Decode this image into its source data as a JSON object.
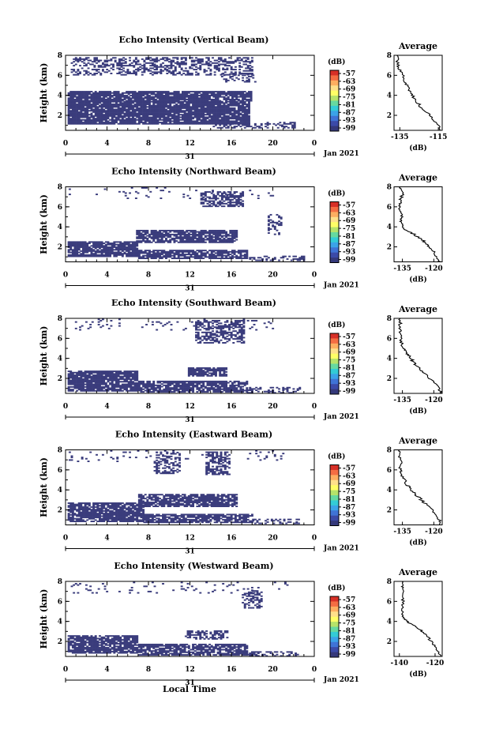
{
  "figure": {
    "x_axis_label": "Local Time",
    "colorbar_unit": "(dB)",
    "colorbar_ticks": [
      "-57",
      "-63",
      "-69",
      "-75",
      "-81",
      "-87",
      "-93",
      "-99"
    ],
    "colorbar_colors": [
      "#d73027",
      "#f46d43",
      "#fdae61",
      "#fee08b",
      "#ffff66",
      "#b6e36a",
      "#66d9a0",
      "#33ccd6",
      "#3ba3e8",
      "#3f73d6",
      "#3b4aa8",
      "#34387a"
    ]
  },
  "chart_data": [
    {
      "type": "heatmap",
      "title": "Echo Intensity (Vertical Beam)",
      "ylabel": "Height (km)",
      "xlabel": "Local Time",
      "x_ticks": [
        "0",
        "4",
        "8",
        "12",
        "16",
        "20",
        "0"
      ],
      "day_label": "31",
      "date_label": "Jan 2021",
      "y_ticks": [
        "2",
        "4",
        "6",
        "8"
      ],
      "xlim": [
        0,
        24
      ],
      "ylim": [
        0.5,
        8
      ],
      "regions": [
        {
          "t0": 0.2,
          "t1": 17.8,
          "h0": 3.4,
          "h1": 4.4,
          "density": 0.88
        },
        {
          "t0": 0.2,
          "t1": 17.6,
          "h0": 1.1,
          "h1": 3.4,
          "density": 0.9
        },
        {
          "t0": 14.0,
          "t1": 22.0,
          "h0": 0.7,
          "h1": 1.3,
          "density": 0.45
        },
        {
          "t0": 0.5,
          "t1": 18.0,
          "h0": 6.0,
          "h1": 7.8,
          "density": 0.45
        },
        {
          "t0": 15.0,
          "t1": 18.2,
          "h0": 5.3,
          "h1": 6.2,
          "density": 0.3
        }
      ],
      "avg": {
        "title": "Average",
        "unit": "(dB)",
        "x_ticks": [
          "-135",
          "-115"
        ],
        "xlim": [
          -138,
          -113
        ],
        "ylim": [
          0.5,
          8
        ],
        "y_ticks": [
          "2",
          "4",
          "6",
          "8"
        ],
        "profile": [
          [
            -113.5,
            0.5
          ],
          [
            -116,
            1.2
          ],
          [
            -119,
            2.0
          ],
          [
            -124,
            2.8
          ],
          [
            -127,
            3.6
          ],
          [
            -130,
            4.4
          ],
          [
            -132,
            5.2
          ],
          [
            -134,
            6.2
          ],
          [
            -136,
            7.0
          ],
          [
            -136.5,
            8.0
          ]
        ]
      }
    },
    {
      "type": "heatmap",
      "title": "Echo Intensity (Northward Beam)",
      "ylabel": "Height (km)",
      "xlabel": "Local Time",
      "x_ticks": [
        "0",
        "4",
        "8",
        "12",
        "16",
        "20",
        "0"
      ],
      "day_label": "31",
      "date_label": "Jan 2021",
      "y_ticks": [
        "2",
        "4",
        "6",
        "8"
      ],
      "xlim": [
        0,
        24
      ],
      "ylim": [
        0.5,
        8
      ],
      "regions": [
        {
          "t0": 0.2,
          "t1": 7.0,
          "h0": 1.0,
          "h1": 2.5,
          "density": 0.85
        },
        {
          "t0": 7.0,
          "t1": 17.5,
          "h0": 0.8,
          "h1": 1.6,
          "density": 0.8
        },
        {
          "t0": 6.8,
          "t1": 16.5,
          "h0": 2.4,
          "h1": 3.6,
          "density": 0.8
        },
        {
          "t0": 17.5,
          "t1": 23.0,
          "h0": 0.6,
          "h1": 1.0,
          "density": 0.4
        },
        {
          "t0": 13.0,
          "t1": 17.0,
          "h0": 6.0,
          "h1": 7.5,
          "density": 0.55
        },
        {
          "t0": 19.5,
          "t1": 20.8,
          "h0": 3.2,
          "h1": 5.2,
          "density": 0.35
        },
        {
          "t0": 0.3,
          "t1": 20.0,
          "h0": 6.8,
          "h1": 7.9,
          "density": 0.05
        }
      ],
      "avg": {
        "title": "Average",
        "unit": "(dB)",
        "x_ticks": [
          "-135",
          "-120"
        ],
        "xlim": [
          -139,
          -116
        ],
        "ylim": [
          0.5,
          8
        ],
        "y_ticks": [
          "2",
          "4",
          "6",
          "8"
        ],
        "profile": [
          [
            -117,
            0.5
          ],
          [
            -119,
            1.2
          ],
          [
            -122,
            2.0
          ],
          [
            -125,
            2.6
          ],
          [
            -129,
            3.2
          ],
          [
            -134,
            3.8
          ],
          [
            -136,
            4.4
          ],
          [
            -135,
            5.0
          ],
          [
            -136,
            5.8
          ],
          [
            -136,
            6.6
          ],
          [
            -135,
            7.2
          ],
          [
            -136,
            8.0
          ]
        ]
      }
    },
    {
      "type": "heatmap",
      "title": "Echo Intensity (Southward Beam)",
      "ylabel": "Height (km)",
      "xlabel": "Local Time",
      "x_ticks": [
        "0",
        "4",
        "8",
        "12",
        "16",
        "20",
        "0"
      ],
      "day_label": "31",
      "date_label": "Jan 2021",
      "y_ticks": [
        "2",
        "4",
        "6",
        "8"
      ],
      "xlim": [
        0,
        24
      ],
      "ylim": [
        0.5,
        8
      ],
      "regions": [
        {
          "t0": 0.2,
          "t1": 7.0,
          "h0": 0.7,
          "h1": 2.7,
          "density": 0.85
        },
        {
          "t0": 7.0,
          "t1": 17.5,
          "h0": 0.6,
          "h1": 1.7,
          "density": 0.8
        },
        {
          "t0": 17.5,
          "t1": 22.5,
          "h0": 0.5,
          "h1": 1.1,
          "density": 0.4
        },
        {
          "t0": 11.8,
          "t1": 15.5,
          "h0": 2.2,
          "h1": 3.0,
          "density": 0.8
        },
        {
          "t0": 12.5,
          "t1": 17.2,
          "h0": 5.5,
          "h1": 7.8,
          "density": 0.55
        },
        {
          "t0": 0.3,
          "t1": 20.0,
          "h0": 6.8,
          "h1": 7.9,
          "density": 0.06
        }
      ],
      "avg": {
        "title": "Average",
        "unit": "(dB)",
        "x_ticks": [
          "-135",
          "-120"
        ],
        "xlim": [
          -139,
          -116
        ],
        "ylim": [
          0.5,
          8
        ],
        "y_ticks": [
          "2",
          "4",
          "6",
          "8"
        ],
        "profile": [
          [
            -116.5,
            0.5
          ],
          [
            -118,
            1.2
          ],
          [
            -122,
            2.0
          ],
          [
            -126,
            2.8
          ],
          [
            -129,
            3.4
          ],
          [
            -131,
            4.0
          ],
          [
            -133,
            4.6
          ],
          [
            -135,
            5.2
          ],
          [
            -136,
            6.0
          ],
          [
            -136,
            7.0
          ],
          [
            -136,
            8.0
          ]
        ]
      }
    },
    {
      "type": "heatmap",
      "title": "Echo Intensity (Eastward Beam)",
      "ylabel": "Height (km)",
      "xlabel": "Local Time",
      "x_ticks": [
        "0",
        "4",
        "8",
        "12",
        "16",
        "20",
        "0"
      ],
      "day_label": "31",
      "date_label": "Jan 2021",
      "y_ticks": [
        "2",
        "4",
        "6",
        "8"
      ],
      "xlim": [
        0,
        24
      ],
      "ylim": [
        0.5,
        8
      ],
      "regions": [
        {
          "t0": 0.2,
          "t1": 7.5,
          "h0": 0.8,
          "h1": 2.7,
          "density": 0.85
        },
        {
          "t0": 7.5,
          "t1": 18.0,
          "h0": 0.7,
          "h1": 1.6,
          "density": 0.75
        },
        {
          "t0": 7.0,
          "t1": 16.5,
          "h0": 2.3,
          "h1": 3.5,
          "density": 0.8
        },
        {
          "t0": 18.0,
          "t1": 22.5,
          "h0": 0.6,
          "h1": 1.0,
          "density": 0.35
        },
        {
          "t0": 8.5,
          "t1": 11.0,
          "h0": 5.6,
          "h1": 7.8,
          "density": 0.45
        },
        {
          "t0": 13.5,
          "t1": 15.8,
          "h0": 5.5,
          "h1": 7.8,
          "density": 0.55
        },
        {
          "t0": 0.3,
          "t1": 21.0,
          "h0": 6.8,
          "h1": 7.9,
          "density": 0.06
        }
      ],
      "avg": {
        "title": "Average",
        "unit": "(dB)",
        "x_ticks": [
          "-135",
          "-120"
        ],
        "xlim": [
          -139,
          -116
        ],
        "ylim": [
          0.5,
          8
        ],
        "y_ticks": [
          "2",
          "4",
          "6",
          "8"
        ],
        "profile": [
          [
            -116.5,
            0.5
          ],
          [
            -118,
            1.2
          ],
          [
            -121,
            2.0
          ],
          [
            -125,
            2.8
          ],
          [
            -128,
            3.4
          ],
          [
            -131,
            4.0
          ],
          [
            -133,
            4.6
          ],
          [
            -135,
            5.4
          ],
          [
            -136,
            6.2
          ],
          [
            -136,
            7.2
          ],
          [
            -136.5,
            8.0
          ]
        ]
      }
    },
    {
      "type": "heatmap",
      "title": "Echo Intensity (Westward Beam)",
      "ylabel": "Height (km)",
      "xlabel": "Local Time",
      "x_ticks": [
        "0",
        "4",
        "8",
        "12",
        "16",
        "20",
        "0"
      ],
      "day_label": "31",
      "date_label": "Jan 2021",
      "y_ticks": [
        "2",
        "4",
        "6",
        "8"
      ],
      "xlim": [
        0,
        24
      ],
      "ylim": [
        0.5,
        8
      ],
      "regions": [
        {
          "t0": 0.2,
          "t1": 7.0,
          "h0": 0.8,
          "h1": 2.5,
          "density": 0.85
        },
        {
          "t0": 7.0,
          "t1": 17.5,
          "h0": 0.6,
          "h1": 1.7,
          "density": 0.8
        },
        {
          "t0": 17.5,
          "t1": 22.5,
          "h0": 0.5,
          "h1": 1.0,
          "density": 0.4
        },
        {
          "t0": 11.5,
          "t1": 15.5,
          "h0": 2.2,
          "h1": 3.0,
          "density": 0.55
        },
        {
          "t0": 17.0,
          "t1": 18.8,
          "h0": 5.3,
          "h1": 7.0,
          "density": 0.5
        },
        {
          "t0": 0.3,
          "t1": 22.0,
          "h0": 6.8,
          "h1": 7.9,
          "density": 0.07
        }
      ],
      "avg": {
        "title": "Average",
        "unit": "(dB)",
        "x_ticks": [
          "-140",
          "-120"
        ],
        "xlim": [
          -143,
          -116
        ],
        "ylim": [
          0.5,
          8
        ],
        "y_ticks": [
          "2",
          "4",
          "6",
          "8"
        ],
        "profile": [
          [
            -117,
            0.5
          ],
          [
            -119,
            1.2
          ],
          [
            -122,
            2.0
          ],
          [
            -126,
            2.8
          ],
          [
            -130,
            3.4
          ],
          [
            -135,
            3.9
          ],
          [
            -138,
            4.5
          ],
          [
            -138,
            5.4
          ],
          [
            -138,
            6.4
          ],
          [
            -138,
            7.4
          ],
          [
            -138.5,
            8.0
          ]
        ]
      }
    }
  ]
}
